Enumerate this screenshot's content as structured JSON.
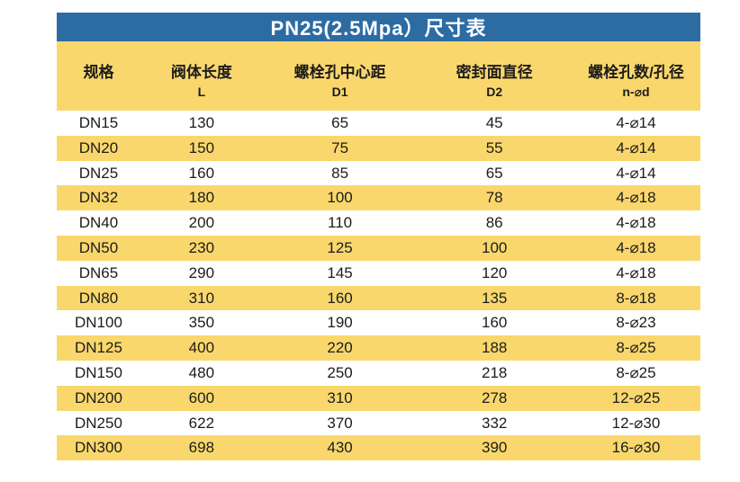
{
  "title": "PN25(2.5Mpa）尺寸表",
  "colors": {
    "header_blue": "#2D6CA3",
    "band_yellow": "#F9D76C",
    "title_text": "#FFFFFF",
    "text_dark": "#1C1C1C"
  },
  "columns": [
    {
      "key": "spec",
      "label": "规格",
      "sub": ""
    },
    {
      "key": "body-length-l",
      "label": "阀体长度",
      "sub": "L"
    },
    {
      "key": "bolt-circle-d1",
      "label": "螺栓孔中心距",
      "sub": "D1"
    },
    {
      "key": "seal-face-d2",
      "label": "密封面直径",
      "sub": "D2"
    },
    {
      "key": "bolt-holes-n-d",
      "label": "螺栓孔数/孔径",
      "sub": "n-⌀d"
    }
  ],
  "rows": [
    [
      "DN15",
      "130",
      "65",
      "45",
      "4-⌀14"
    ],
    [
      "DN20",
      "150",
      "75",
      "55",
      "4-⌀14"
    ],
    [
      "DN25",
      "160",
      "85",
      "65",
      "4-⌀14"
    ],
    [
      "DN32",
      "180",
      "100",
      "78",
      "4-⌀18"
    ],
    [
      "DN40",
      "200",
      "110",
      "86",
      "4-⌀18"
    ],
    [
      "DN50",
      "230",
      "125",
      "100",
      "4-⌀18"
    ],
    [
      "DN65",
      "290",
      "145",
      "120",
      "4-⌀18"
    ],
    [
      "DN80",
      "310",
      "160",
      "135",
      "8-⌀18"
    ],
    [
      "DN100",
      "350",
      "190",
      "160",
      "8-⌀23"
    ],
    [
      "DN125",
      "400",
      "220",
      "188",
      "8-⌀25"
    ],
    [
      "DN150",
      "480",
      "250",
      "218",
      "8-⌀25"
    ],
    [
      "DN200",
      "600",
      "310",
      "278",
      "12-⌀25"
    ],
    [
      "DN250",
      "622",
      "370",
      "332",
      "12-⌀30"
    ],
    [
      "DN300",
      "698",
      "430",
      "390",
      "16-⌀30"
    ]
  ]
}
